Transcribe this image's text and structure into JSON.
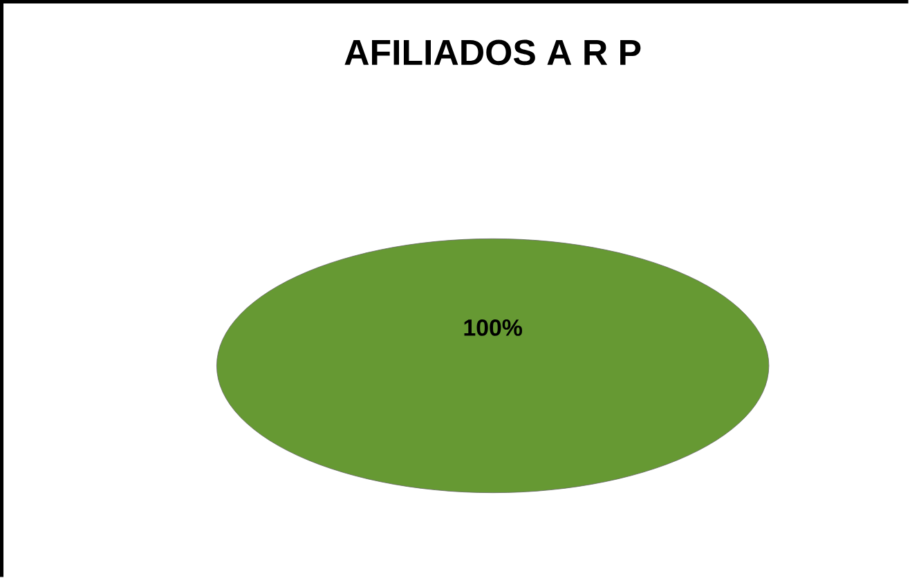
{
  "chart_data": {
    "type": "pie",
    "title": "AFILIADOS   A R P",
    "categories": [
      null
    ],
    "values": [
      100
    ],
    "colors": [
      "#669933"
    ],
    "value_labels": [
      "100%"
    ]
  }
}
